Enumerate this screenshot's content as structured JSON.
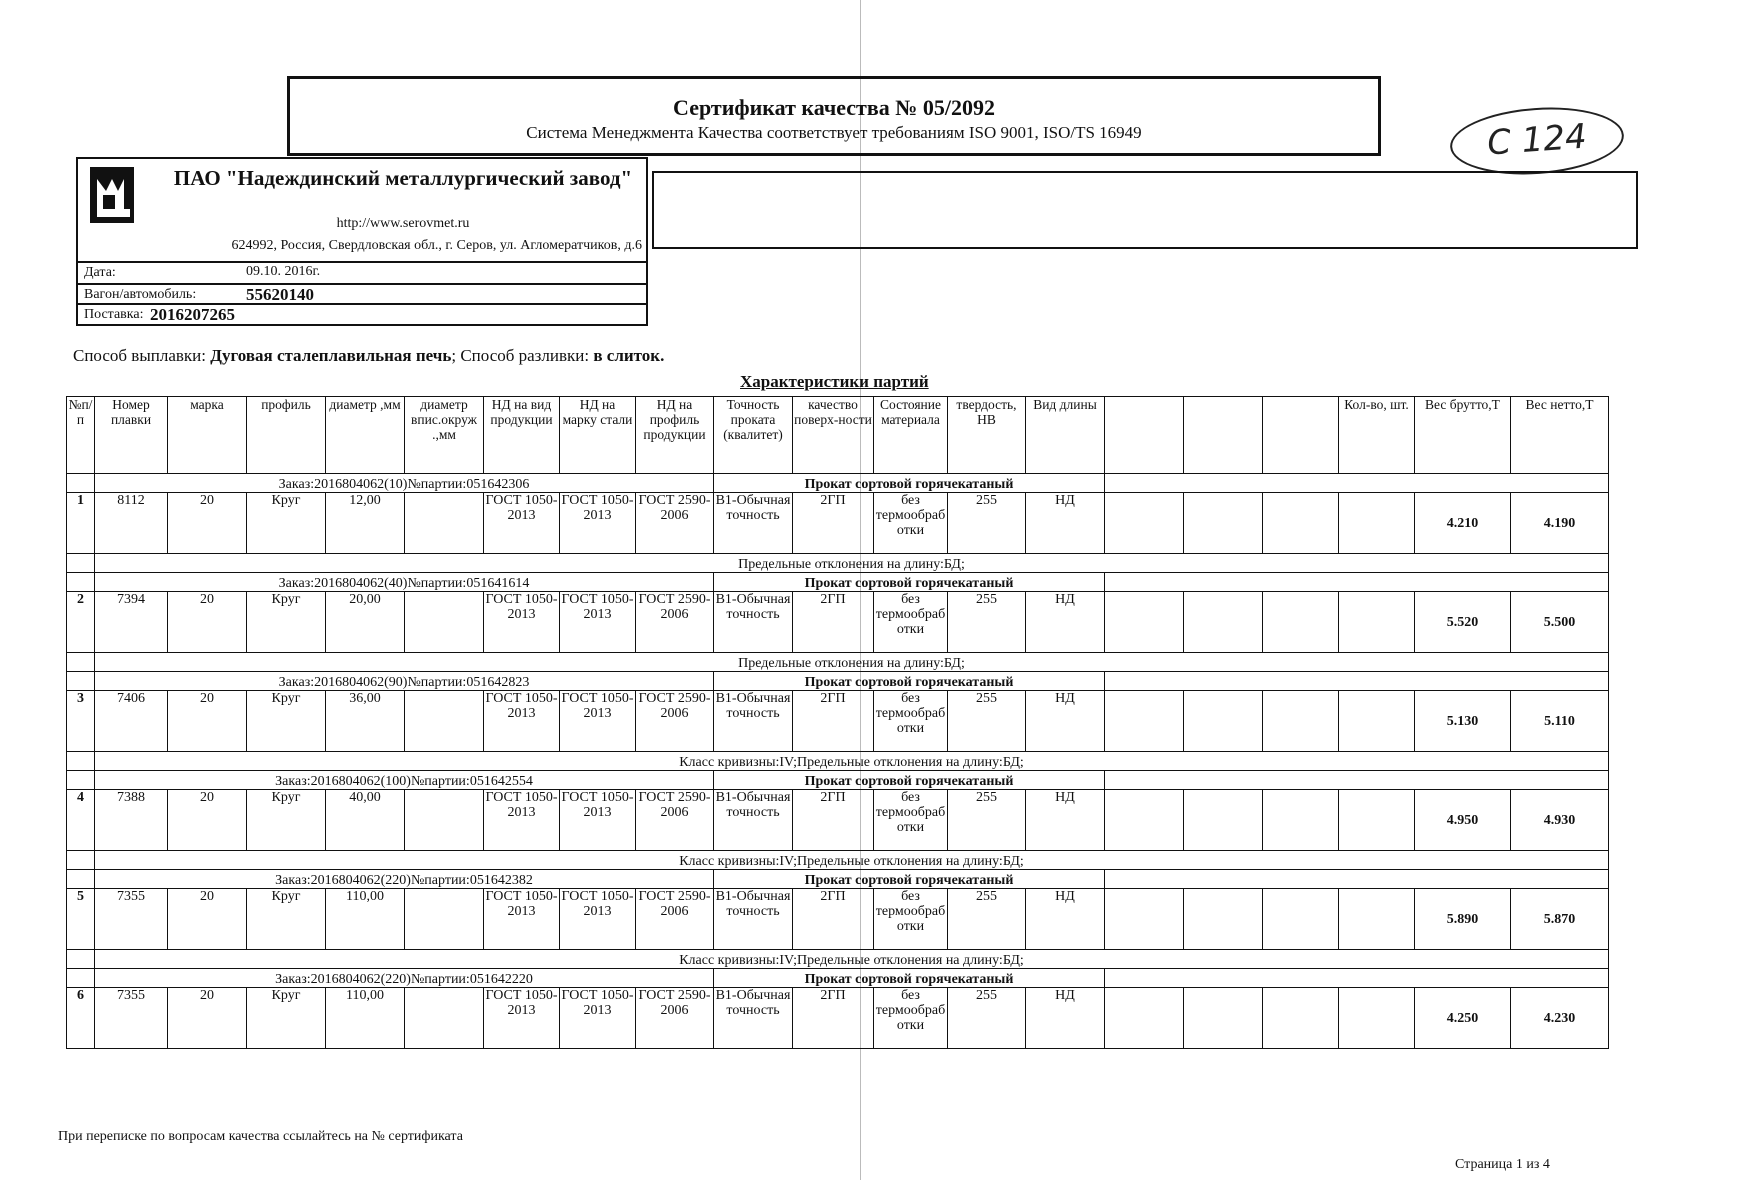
{
  "certificate": {
    "title": "Сертификат качества № 05/2092",
    "subtitle": "Система Менеджмента Качества соответствует требованиям ISO 9001, ISO/TS 16949"
  },
  "handwritten_note": "С 124",
  "company": {
    "name": "ПАО \"Надеждинский металлургический завод\"",
    "url": "http://www.serovmet.ru",
    "address": "624992, Россия, Свердловская обл., г. Серов, ул. Агломератчиков, д.6",
    "date_label": "Дата:",
    "date": "09.10. 2016г.",
    "wagon_label": "Вагон/автомобиль:",
    "wagon": "55620140",
    "delivery_label": "Поставка:",
    "delivery": "2016207265"
  },
  "method": {
    "smelting_label": "Способ выплавки:",
    "smelting": "Дуговая сталеплавильная печь",
    "casting_label": "; Способ разливки:",
    "casting": "в слиток."
  },
  "table_title": "Характеристики партий",
  "columns": [
    "№п/п",
    "Номер плавки",
    "марка",
    "профиль",
    "диаметр ,мм",
    "диаметр впис.окруж .,мм",
    "НД на вид продукции",
    "НД на марку стали",
    "НД на профиль продукции",
    "Точность проката (квалитет)",
    "качество поверх-ности",
    "Состояние материала",
    "твердость, НВ",
    "Вид длины",
    "",
    "",
    "",
    "Кол-во, шт.",
    "Вес брутто,Т",
    "Вес нетто,Т"
  ],
  "product_type": "Прокат сортовой горячекатаный",
  "batches": [
    {
      "num": "1",
      "order": "Заказ:2016804062(10)№партии:051642306",
      "heat": "8112",
      "grade": "20",
      "profile": "Круг",
      "diameter": "12,00",
      "nd_product": "ГОСТ 1050-2013",
      "nd_grade": "ГОСТ 1050-2013",
      "nd_profile": "ГОСТ 2590-2006",
      "accuracy": "В1-Обычная точность",
      "surface": "2ГП",
      "state": "без термообработки",
      "hardness": "255",
      "length": "НД",
      "gross": "4.210",
      "net": "4.190",
      "note": "Предельные отклонения на длину:БД;"
    },
    {
      "num": "2",
      "order": "Заказ:2016804062(40)№партии:051641614",
      "heat": "7394",
      "grade": "20",
      "profile": "Круг",
      "diameter": "20,00",
      "nd_product": "ГОСТ 1050-2013",
      "nd_grade": "ГОСТ 1050-2013",
      "nd_profile": "ГОСТ 2590-2006",
      "accuracy": "В1-Обычная точность",
      "surface": "2ГП",
      "state": "без термообработки",
      "hardness": "255",
      "length": "НД",
      "gross": "5.520",
      "net": "5.500",
      "note": "Предельные отклонения на длину:БД;"
    },
    {
      "num": "3",
      "order": "Заказ:2016804062(90)№партии:051642823",
      "heat": "7406",
      "grade": "20",
      "profile": "Круг",
      "diameter": "36,00",
      "nd_product": "ГОСТ 1050-2013",
      "nd_grade": "ГОСТ 1050-2013",
      "nd_profile": "ГОСТ 2590-2006",
      "accuracy": "В1-Обычная точность",
      "surface": "2ГП",
      "state": "без термообработки",
      "hardness": "255",
      "length": "НД",
      "gross": "5.130",
      "net": "5.110",
      "note": "Класс кривизны:IV;Предельные отклонения на длину:БД;"
    },
    {
      "num": "4",
      "order": "Заказ:2016804062(100)№партии:051642554",
      "heat": "7388",
      "grade": "20",
      "profile": "Круг",
      "diameter": "40,00",
      "nd_product": "ГОСТ 1050-2013",
      "nd_grade": "ГОСТ 1050-2013",
      "nd_profile": "ГОСТ 2590-2006",
      "accuracy": "В1-Обычная точность",
      "surface": "2ГП",
      "state": "без термообработки",
      "hardness": "255",
      "length": "НД",
      "gross": "4.950",
      "net": "4.930",
      "note": "Класс кривизны:IV;Предельные отклонения на длину:БД;"
    },
    {
      "num": "5",
      "order": "Заказ:2016804062(220)№партии:051642382",
      "heat": "7355",
      "grade": "20",
      "profile": "Круг",
      "diameter": "110,00",
      "nd_product": "ГОСТ 1050-2013",
      "nd_grade": "ГОСТ 1050-2013",
      "nd_profile": "ГОСТ 2590-2006",
      "accuracy": "В1-Обычная точность",
      "surface": "2ГП",
      "state": "без термообработки",
      "hardness": "255",
      "length": "НД",
      "gross": "5.890",
      "net": "5.870",
      "note": "Класс кривизны:IV;Предельные отклонения на длину:БД;"
    },
    {
      "num": "6",
      "order": "Заказ:2016804062(220)№партии:051642220",
      "heat": "7355",
      "grade": "20",
      "profile": "Круг",
      "diameter": "110,00",
      "nd_product": "ГОСТ 1050-2013",
      "nd_grade": "ГОСТ 1050-2013",
      "nd_profile": "ГОСТ 2590-2006",
      "accuracy": "В1-Обычная точность",
      "surface": "2ГП",
      "state": "без термообработки",
      "hardness": "255",
      "length": "НД",
      "gross": "4.250",
      "net": "4.230",
      "note": ""
    }
  ],
  "footer": {
    "note": "При переписке по вопросам качества ссылайтесь на № сертификата",
    "page": "Страница 1 из 4"
  }
}
